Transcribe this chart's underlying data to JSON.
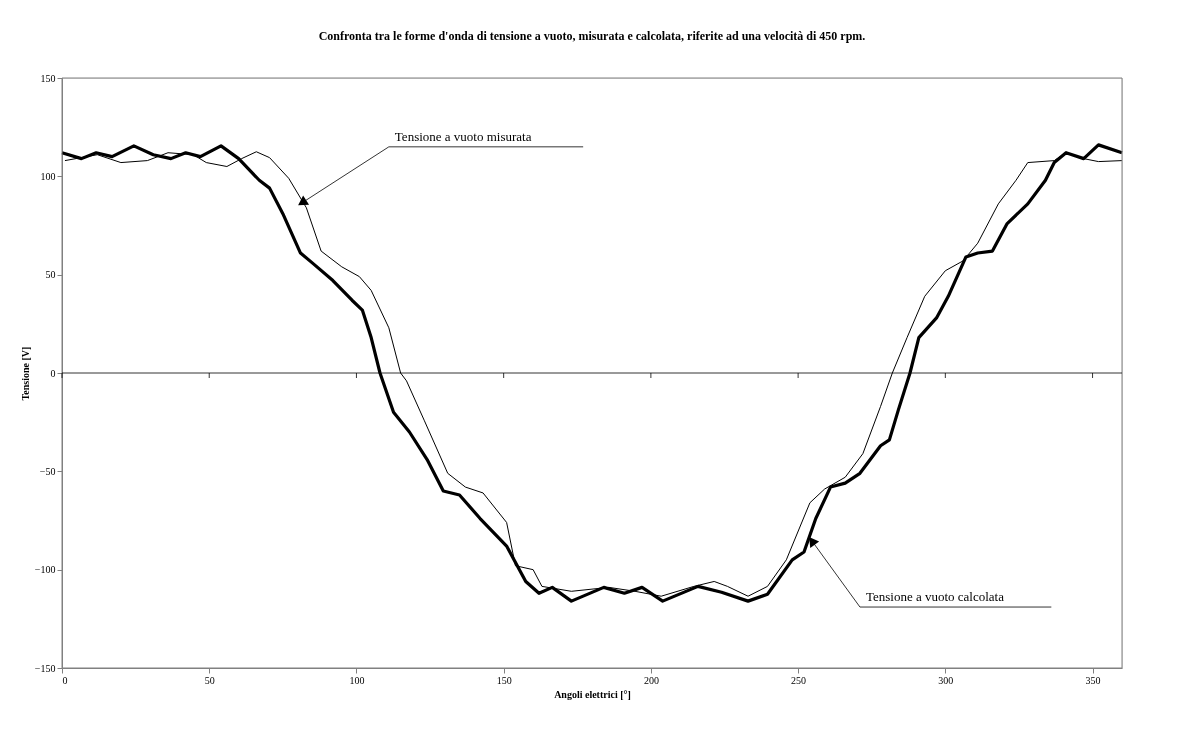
{
  "chart_data": {
    "type": "line",
    "title": "Confronta tra le forme d'onda di tensione a vuoto, misurata e calcolata, riferite ad una velocità di 450 rpm.",
    "xlabel": "Angoli elettrici [°]",
    "ylabel": "Tensione [V]",
    "xlim": [
      0,
      360
    ],
    "xticks": [
      0,
      50,
      100,
      150,
      200,
      250,
      300,
      350
    ],
    "ylim": [
      -150,
      150
    ],
    "yticks": [
      -150,
      -100,
      -50,
      0,
      50,
      100,
      150
    ],
    "grid": false,
    "legend": false,
    "marker": "none",
    "line_style": "solid",
    "ref_lines": [
      {
        "axis": "y",
        "value": 0,
        "color": "#000000"
      }
    ],
    "annotations": [
      {
        "text": "Tensione a vuoto misurata",
        "x": 82,
        "y": 87
      },
      {
        "text": "Tensione a vuoto calcolata",
        "x": 255,
        "y": -86
      }
    ],
    "series": [
      {
        "color": "#000000",
        "x": [
          1,
          12,
          20,
          29,
          36,
          44.6,
          49,
          56,
          61,
          66,
          70.5,
          77,
          83,
          88,
          95,
          101,
          105,
          111,
          115,
          117,
          123,
          131,
          137,
          143,
          151,
          154,
          160,
          163,
          173,
          185.7,
          194.6,
          203.5,
          214.6,
          221.5,
          226,
          233,
          239.6,
          246,
          254,
          259,
          266,
          272,
          278,
          282,
          287,
          293,
          300,
          306,
          311,
          318,
          324,
          328,
          337,
          341,
          347,
          352,
          360
        ],
        "values": [
          108,
          111,
          107,
          108,
          112,
          111,
          107,
          105,
          109,
          112.5,
          109.5,
          99,
          84,
          62,
          54,
          49,
          42,
          23,
          0,
          -4,
          -24,
          -51,
          -58,
          -61,
          -76,
          -98,
          -100,
          -108.5,
          -111,
          -109,
          -111,
          -113.5,
          -108.5,
          -106,
          -108.5,
          -113.5,
          -108.5,
          -95,
          -66,
          -59,
          -53,
          -41,
          -17,
          0,
          18,
          39,
          52,
          57,
          66,
          86,
          98,
          107,
          108,
          112,
          109,
          107.5,
          108
        ]
      },
      {
        "color": "#000000",
        "x": [
          0,
          6.6,
          11.6,
          17,
          24.4,
          31,
          37,
          42,
          47,
          54,
          60,
          67,
          70.5,
          75,
          81,
          85,
          92,
          98.5,
          102,
          105,
          108,
          112.6,
          118,
          124,
          129.5,
          135,
          142,
          151,
          157.5,
          162,
          166.5,
          173,
          184,
          191,
          197,
          204,
          216,
          224,
          233,
          239.6,
          248,
          252,
          256,
          261,
          266,
          271,
          278,
          281,
          284,
          288,
          291,
          297,
          301,
          307,
          311,
          316,
          321,
          328,
          334,
          337,
          341,
          347,
          352,
          360
        ],
        "values": [
          112,
          109,
          112,
          110,
          115.5,
          111,
          109,
          112,
          110,
          115.5,
          109,
          98,
          94,
          81,
          61,
          56,
          47,
          37,
          32,
          18,
          0,
          -20,
          -30,
          -44,
          -60,
          -62,
          -74,
          -88,
          -106,
          -112,
          -109,
          -116,
          -109,
          -112,
          -109,
          -116,
          -108.5,
          -111.5,
          -116,
          -112.5,
          -95,
          -91,
          -74,
          -58,
          -56,
          -51,
          -37,
          -34,
          -19,
          0,
          18,
          28,
          39,
          59,
          61,
          62,
          76,
          86,
          98,
          107,
          112,
          109,
          116,
          112
        ]
      }
    ]
  }
}
